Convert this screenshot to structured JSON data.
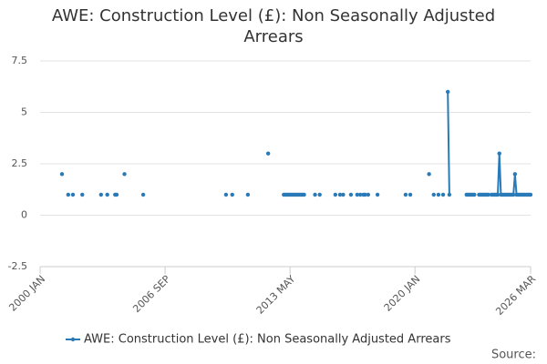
{
  "chart_data": {
    "type": "line",
    "title": "AWE: Construction Level (£): Non Seasonally Adjusted Arrears",
    "source": "Source:",
    "xlim": [
      "2000-01",
      "2026-03"
    ],
    "xticks": [
      {
        "value": "2000-01",
        "label": "2000 JAN"
      },
      {
        "value": "2006-09",
        "label": "2006 SEP"
      },
      {
        "value": "2013-05",
        "label": "2013 MAY"
      },
      {
        "value": "2020-01",
        "label": "2020 JAN"
      },
      {
        "value": "2026-03",
        "label": "2026 MAR"
      }
    ],
    "ylim": [
      -2.5,
      7.5
    ],
    "yticks": [
      -2.5,
      0,
      2.5,
      5,
      7.5
    ],
    "grid": true,
    "legend": "bottom",
    "x": [
      "2001-03",
      "2001-04",
      "2001-07",
      "2001-08",
      "2001-10",
      "2001-11",
      "2002-04",
      "2002-05",
      "2003-04",
      "2003-05",
      "2003-08",
      "2003-09",
      "2004-01",
      "2004-02",
      "2004-03",
      "2004-07",
      "2004-08",
      "2005-07",
      "2005-08",
      "2009-12",
      "2010-01",
      "2010-04",
      "2010-05",
      "2011-02",
      "2011-03",
      "2012-03",
      "2012-04",
      "2013-01",
      "2013-02",
      "2013-03",
      "2013-04",
      "2013-05",
      "2013-06",
      "2013-07",
      "2013-08",
      "2013-09",
      "2013-10",
      "2013-11",
      "2013-12",
      "2014-01",
      "2014-02",
      "2014-03",
      "2014-09",
      "2014-10",
      "2014-12",
      "2015-01",
      "2015-10",
      "2015-11",
      "2016-01",
      "2016-02",
      "2016-03",
      "2016-04",
      "2016-08",
      "2016-09",
      "2016-12",
      "2017-01",
      "2017-02",
      "2017-03",
      "2017-04",
      "2017-05",
      "2017-06",
      "2017-07",
      "2017-08",
      "2018-01",
      "2018-02",
      "2019-07",
      "2019-08",
      "2019-10",
      "2019-11",
      "2020-10",
      "2020-11",
      "2021-01",
      "2021-02",
      "2021-04",
      "2021-05",
      "2021-07",
      "2021-08",
      "2021-10",
      "2021-11",
      "2021-12",
      "2022-10",
      "2022-11",
      "2022-12",
      "2023-01",
      "2023-02",
      "2023-03",
      "2023-04",
      "2023-06",
      "2023-07",
      "2023-08",
      "2023-09",
      "2023-10",
      "2023-11",
      "2023-12",
      "2024-01",
      "2024-02",
      "2024-03",
      "2024-04",
      "2024-05",
      "2024-06",
      "2024-07",
      "2024-08",
      "2024-09",
      "2024-10",
      "2024-11",
      "2024-12",
      "2025-01",
      "2025-02",
      "2025-03",
      "2025-04",
      "2025-05",
      "2025-06",
      "2025-07",
      "2025-08",
      "2025-09",
      "2025-10",
      "2025-11",
      "2025-12",
      "2026-01",
      "2026-02",
      "2026-03"
    ],
    "series": [
      {
        "name": "AWE: Construction Level (£): Non Seasonally Adjusted Arrears",
        "color": "#2a7ab8",
        "values": [
          2,
          null,
          1,
          null,
          1,
          null,
          1,
          null,
          1,
          null,
          1,
          null,
          1,
          1,
          null,
          2,
          null,
          1,
          null,
          1,
          null,
          1,
          null,
          1,
          null,
          3,
          null,
          1,
          1,
          1,
          1,
          1,
          1,
          1,
          1,
          1,
          1,
          1,
          1,
          1,
          1,
          null,
          1,
          null,
          1,
          null,
          1,
          null,
          1,
          null,
          1,
          null,
          1,
          null,
          1,
          null,
          1,
          null,
          1,
          1,
          null,
          1,
          null,
          1,
          null,
          1,
          null,
          1,
          null,
          2,
          null,
          1,
          null,
          1,
          null,
          1,
          null,
          6,
          1,
          null,
          1,
          1,
          1,
          1,
          1,
          1,
          null,
          1,
          1,
          1,
          1,
          1,
          1,
          1,
          null,
          1,
          1,
          1,
          1,
          1,
          3,
          1,
          1,
          1,
          1,
          1,
          1,
          1,
          1,
          1,
          2,
          1,
          1,
          1,
          1,
          1,
          1,
          1,
          1,
          1,
          1
        ]
      }
    ]
  }
}
